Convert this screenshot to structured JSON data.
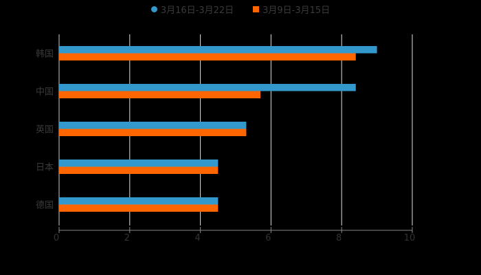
{
  "chart_data": {
    "type": "bar",
    "orientation": "horizontal",
    "title": "",
    "xlabel": "",
    "ylabel": "",
    "categories": [
      "韩国",
      "中国",
      "英国",
      "日本",
      "德国"
    ],
    "series": [
      {
        "name": "3月16日-3月22日",
        "color": "#3399cc",
        "values": [
          9.0,
          8.4,
          5.3,
          4.5,
          4.5
        ]
      },
      {
        "name": "3月9日-3月15日",
        "color": "#ff6600",
        "values": [
          8.4,
          5.7,
          5.3,
          4.5,
          4.5
        ]
      }
    ],
    "xlim": [
      0,
      10
    ],
    "xticks": [
      "0",
      "2",
      "4",
      "6",
      "8",
      "10"
    ],
    "grid": true,
    "legend_position": "top"
  },
  "legend": [
    {
      "label": "3月16日-3月22日",
      "color": "#3399cc",
      "shape": "circle"
    },
    {
      "label": "3月9日-3月15日",
      "color": "#ff6600",
      "shape": "square"
    }
  ]
}
